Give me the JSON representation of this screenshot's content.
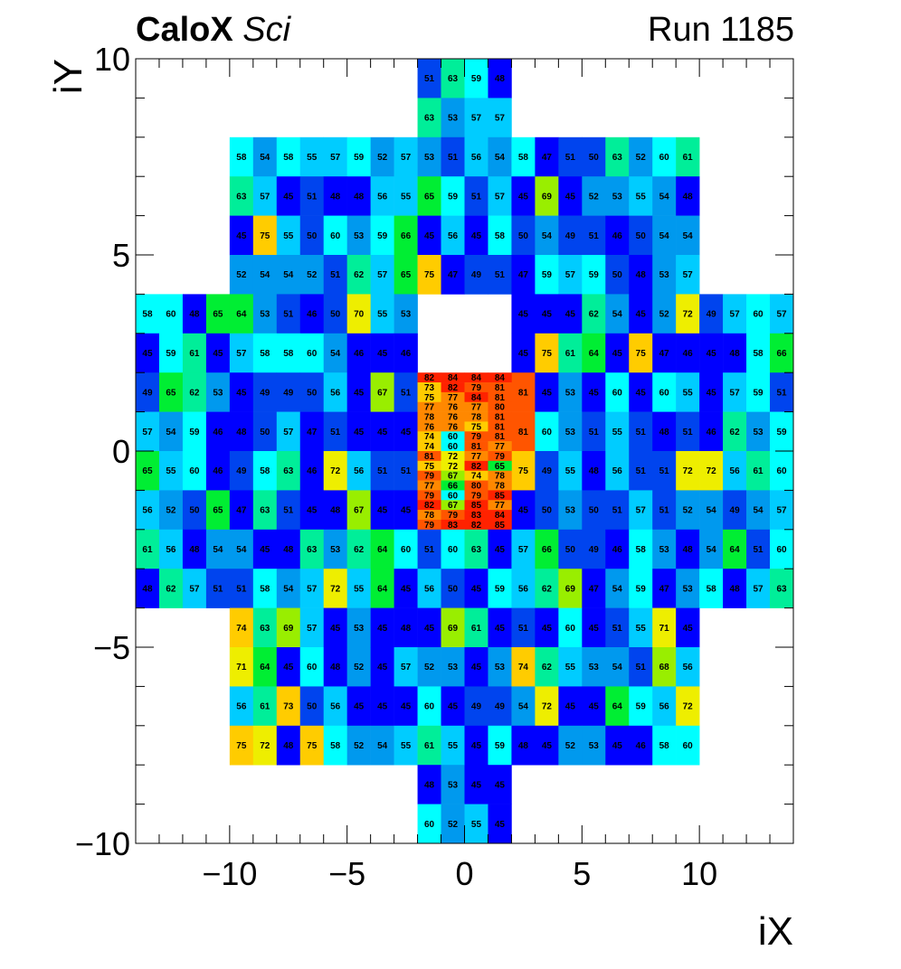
{
  "header": {
    "experiment": "CaloX",
    "subsystem": "Sci",
    "run_label": "Run 1185"
  },
  "chart_data": {
    "type": "heatmap",
    "xlabel": "iX",
    "ylabel": "iY",
    "xlim": [
      -14,
      14
    ],
    "ylim": [
      -10,
      10
    ],
    "xticks": [
      -10,
      -5,
      0,
      5,
      10
    ],
    "yticks": [
      -10,
      -5,
      0,
      5,
      10
    ],
    "grid": false,
    "colorscale": [
      "#0000ff",
      "#0044ee",
      "#0099ee",
      "#00ccff",
      "#00ffff",
      "#00ee99",
      "#00ee33",
      "#99ee00",
      "#eeee00",
      "#ffcc00",
      "#ff8800",
      "#ff5500",
      "#ff2200"
    ],
    "value_range": [
      45,
      85
    ],
    "blocks": [
      {
        "x0": -2,
        "y0": 9,
        "ncols": 4,
        "rows": [
          [
            51,
            63,
            59,
            48
          ]
        ]
      },
      {
        "x0": -2,
        "y0": 8,
        "ncols": 4,
        "rows": [
          [
            63,
            53,
            57,
            57
          ]
        ]
      },
      {
        "x0": -10,
        "y0": 4,
        "ncols": 20,
        "rows": [
          [
            58,
            54,
            58,
            55,
            57,
            59,
            52,
            57,
            53,
            51,
            56,
            54,
            58,
            47,
            51,
            50,
            63,
            52,
            60,
            61
          ],
          [
            63,
            57,
            45,
            51,
            48,
            48,
            56,
            55,
            65,
            59,
            51,
            57,
            45,
            69,
            45,
            52,
            53,
            55,
            54,
            48
          ],
          [
            45,
            75,
            55,
            50,
            60,
            53,
            59,
            66,
            45,
            56,
            45,
            58,
            50,
            54,
            49,
            51,
            46,
            50,
            54,
            54
          ],
          [
            52,
            54,
            54,
            52,
            51,
            62,
            57,
            65,
            75,
            47,
            49,
            51,
            47,
            59,
            57,
            59,
            50,
            48,
            53,
            57
          ]
        ]
      },
      {
        "x0": -14,
        "y0": -2,
        "ncols": 12,
        "rows": [
          [
            58,
            60,
            48,
            65,
            64,
            53,
            51,
            46,
            50,
            70,
            55,
            53
          ],
          [
            45,
            59,
            61,
            45,
            57,
            58,
            58,
            60,
            54,
            46,
            45,
            46
          ],
          [
            49,
            65,
            62,
            53,
            45,
            49,
            49,
            50,
            56,
            45,
            67,
            51
          ],
          [
            57,
            54,
            59,
            46,
            48,
            50,
            57,
            47,
            51,
            45,
            45,
            45
          ],
          [
            65,
            55,
            60,
            46,
            49,
            58,
            63,
            46,
            72,
            56,
            51,
            51
          ],
          [
            56,
            52,
            50,
            65,
            47,
            63,
            51,
            45,
            48,
            67,
            45,
            45
          ]
        ]
      },
      {
        "x0": 2,
        "y0": -2,
        "ncols": 12,
        "rows": [
          [
            45,
            45,
            45,
            62,
            54,
            45,
            52,
            72,
            49,
            57,
            60,
            57
          ],
          [
            45,
            75,
            61,
            64,
            45,
            75,
            47,
            46,
            45,
            48,
            58,
            66
          ],
          [
            81,
            45,
            53,
            45,
            60,
            45,
            60,
            55,
            45,
            57,
            59,
            51
          ],
          [
            81,
            60,
            53,
            51,
            55,
            51,
            48,
            51,
            46,
            62,
            53,
            59
          ],
          [
            75,
            49,
            55,
            48,
            56,
            51,
            51,
            72,
            72,
            56,
            61,
            60
          ],
          [
            45,
            50,
            53,
            50,
            51,
            57,
            51,
            52,
            54,
            49,
            54,
            57
          ]
        ]
      },
      {
        "x0": -2,
        "y0": -2,
        "ncols": 4,
        "hires": true,
        "rows": [
          [
            82,
            84,
            84,
            84
          ],
          [
            73,
            82,
            79,
            81
          ],
          [
            75,
            77,
            84,
            81
          ],
          [
            77,
            76,
            77,
            80
          ],
          [
            78,
            76,
            78,
            81
          ],
          [
            76,
            76,
            75,
            81
          ],
          [
            74,
            60,
            79,
            81
          ],
          [
            74,
            60,
            81,
            77
          ],
          [
            81,
            72,
            77,
            79
          ],
          [
            75,
            72,
            82,
            65
          ],
          [
            79,
            67,
            74,
            78
          ],
          [
            77,
            66,
            80,
            78
          ],
          [
            79,
            60,
            79,
            85
          ],
          [
            82,
            67,
            85,
            77
          ],
          [
            78,
            79,
            83,
            84
          ],
          [
            79,
            83,
            82,
            85
          ]
        ]
      },
      {
        "x0": -14,
        "y0": -4,
        "ncols": 28,
        "rows": [
          [
            61,
            56,
            48,
            54,
            54,
            45,
            48,
            63,
            53,
            62,
            64,
            60,
            51,
            60,
            63,
            45,
            57,
            66,
            50,
            49,
            46,
            58,
            53,
            48,
            54,
            64,
            51,
            60
          ],
          [
            48,
            62,
            57,
            51,
            51,
            58,
            54,
            57,
            72,
            55,
            64,
            45,
            56,
            50,
            45,
            59,
            56,
            62,
            69,
            47,
            54,
            59,
            47,
            53,
            58,
            48,
            57,
            63
          ]
        ]
      },
      {
        "x0": -10,
        "y0": -8,
        "ncols": 20,
        "rows": [
          [
            74,
            63,
            69,
            57,
            45,
            53,
            45,
            48,
            45,
            69,
            61,
            45,
            51,
            45,
            60,
            45,
            51,
            55,
            71,
            45
          ],
          [
            71,
            64,
            45,
            60,
            48,
            52,
            45,
            57,
            52,
            53,
            45,
            53,
            74,
            62,
            55,
            53,
            54,
            51,
            68,
            56
          ],
          [
            56,
            61,
            73,
            50,
            56,
            45,
            45,
            45,
            60,
            45,
            49,
            49,
            54,
            72,
            45,
            45,
            64,
            59,
            56,
            72
          ],
          [
            75,
            72,
            48,
            75,
            58,
            52,
            54,
            55,
            61,
            55,
            45,
            59,
            48,
            45,
            52,
            53,
            45,
            46,
            58,
            60
          ]
        ]
      },
      {
        "x0": -2,
        "y0": -9,
        "ncols": 4,
        "rows": [
          [
            48,
            53,
            45,
            45
          ]
        ]
      },
      {
        "x0": -2,
        "y0": -10,
        "ncols": 4,
        "rows": [
          [
            60,
            52,
            55,
            45
          ]
        ]
      }
    ]
  }
}
